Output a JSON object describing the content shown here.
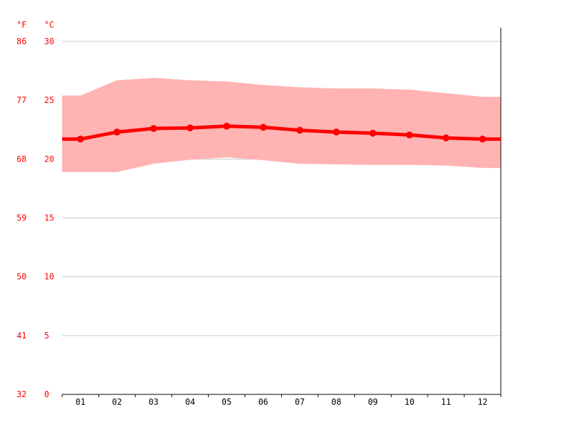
{
  "chart_data": {
    "type": "line",
    "title": "",
    "xlabel": "",
    "categories": [
      "01",
      "02",
      "03",
      "04",
      "05",
      "06",
      "07",
      "08",
      "09",
      "10",
      "11",
      "12"
    ],
    "y_unit_f": "°F",
    "y_unit_c": "°C",
    "yticks_c": [
      "0",
      "5",
      "10",
      "15",
      "20",
      "25",
      "30"
    ],
    "yticks_f": [
      "32",
      "41",
      "50",
      "59",
      "68",
      "77",
      "86"
    ],
    "ylim": [
      0,
      32
    ],
    "grid": true,
    "series": [
      {
        "values": [
          21.7,
          22.3,
          22.6,
          22.65,
          22.8,
          22.7,
          22.45,
          22.3,
          22.2,
          22.05,
          21.8,
          21.7
        ]
      }
    ],
    "range_band": {
      "upper": [
        25.4,
        26.7,
        26.9,
        26.7,
        26.6,
        26.3,
        26.1,
        26.0,
        26.0,
        25.9,
        25.6,
        25.3
      ],
      "lower": [
        18.9,
        18.9,
        19.6,
        19.95,
        20.15,
        19.9,
        19.6,
        19.55,
        19.5,
        19.5,
        19.45,
        19.25
      ]
    },
    "colors": {
      "line": "#ff0000",
      "band": "#ffb3b3",
      "grid": "#c8c8c8",
      "axis": "#000000",
      "tick_text": "#ff0000",
      "month_text": "#000000"
    }
  }
}
